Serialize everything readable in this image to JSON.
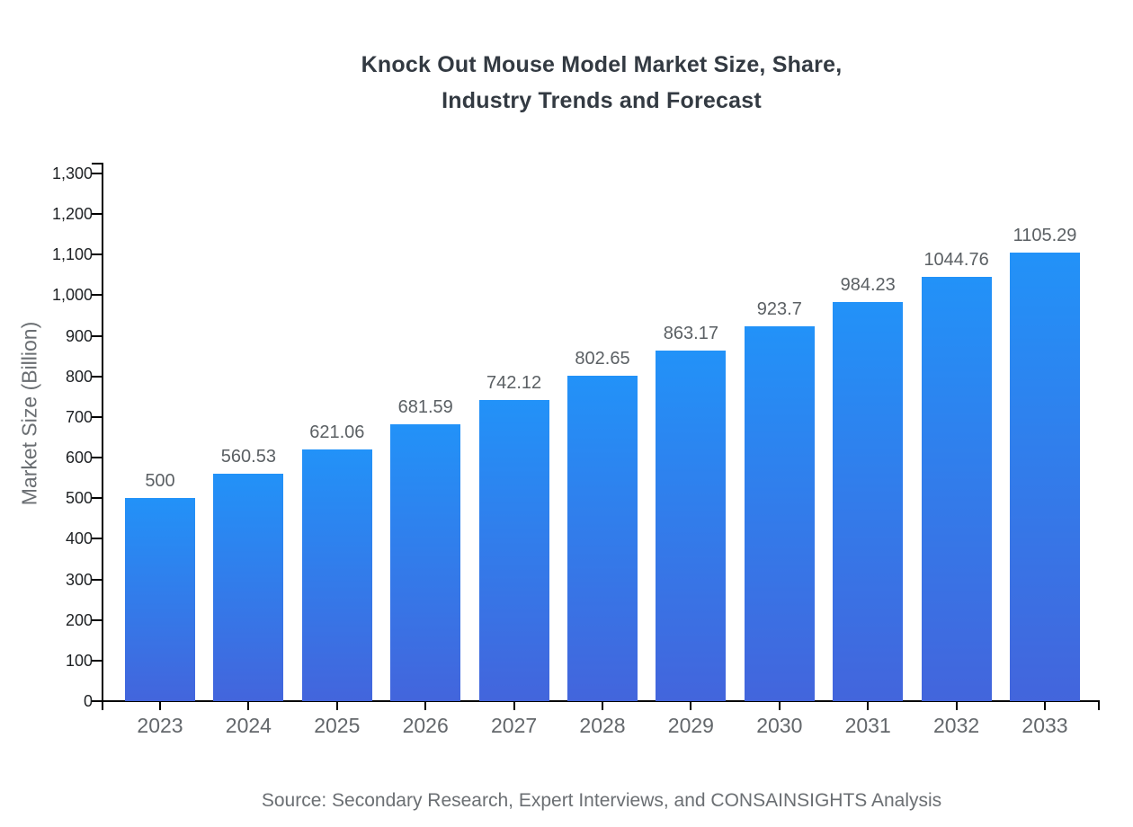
{
  "title": {
    "line1": "Knock Out Mouse Model Market Size, Share,",
    "line2": "Industry Trends and Forecast"
  },
  "source": "Source: Secondary Research, Expert Interviews, and CONSAINSIGHTS Analysis",
  "chart_data": {
    "type": "bar",
    "title": "Knock Out Mouse Model Market Size, Share, Industry Trends and Forecast",
    "categories": [
      "2023",
      "2024",
      "2025",
      "2026",
      "2027",
      "2028",
      "2029",
      "2030",
      "2031",
      "2032",
      "2033"
    ],
    "values": [
      500,
      560.53,
      621.06,
      681.59,
      742.12,
      802.65,
      863.17,
      923.7,
      984.23,
      1044.76,
      1105.29
    ],
    "value_labels": [
      "500",
      "560.53",
      "621.06",
      "681.59",
      "742.12",
      "802.65",
      "863.17",
      "923.7",
      "984.23",
      "1044.76",
      "1105.29"
    ],
    "xlabel": "",
    "ylabel": "Market Size (Billion)",
    "ylim": [
      0,
      1300
    ],
    "ytick_step": 100,
    "ytick_labels": [
      "0",
      "100",
      "200",
      "300",
      "400",
      "500",
      "600",
      "700",
      "800",
      "900",
      "1,000",
      "1,100",
      "1,200",
      "1,300"
    ],
    "grid": false,
    "legend_position": "none",
    "colors": {
      "bar_gradient_top": "#2292f8",
      "bar_gradient_bottom": "#4365dc",
      "axis": "#000000",
      "title_text": "#333a42",
      "ytick_text": "#1d2023",
      "xtick_text": "#63676b",
      "value_label_text": "#5b6064",
      "axis_title_text": "#6a6e72",
      "source_text": "#6b6f73"
    }
  }
}
